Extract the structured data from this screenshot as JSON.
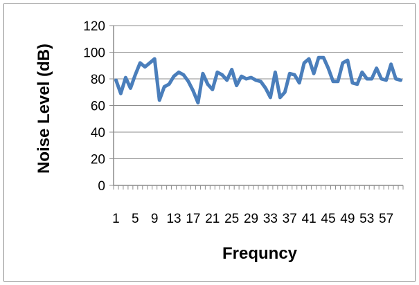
{
  "chart_data": {
    "type": "line",
    "title": "",
    "xlabel": "Frequncy",
    "ylabel": "Noise Level (dB)",
    "ylim": [
      0,
      120
    ],
    "yticks": [
      0,
      20,
      40,
      60,
      80,
      100,
      120
    ],
    "x_tick_labels": [
      "1",
      "5",
      "9",
      "13",
      "17",
      "21",
      "25",
      "29",
      "33",
      "37",
      "41",
      "45",
      "49",
      "53",
      "57"
    ],
    "grid": true,
    "legend": "none",
    "series_color": "#4a7ebb",
    "x": [
      1,
      2,
      3,
      4,
      5,
      6,
      7,
      8,
      9,
      10,
      11,
      12,
      13,
      14,
      15,
      16,
      17,
      18,
      19,
      20,
      21,
      22,
      23,
      24,
      25,
      26,
      27,
      28,
      29,
      30,
      31,
      32,
      33,
      34,
      35,
      36,
      37,
      38,
      39,
      40,
      41,
      42,
      43,
      44,
      45,
      46,
      47,
      48,
      49,
      50,
      51,
      52,
      53,
      54,
      55,
      56,
      57,
      58,
      59,
      60
    ],
    "series": [
      {
        "values": [
          79,
          69,
          81,
          73,
          83,
          92,
          89,
          92,
          95,
          64,
          74,
          76,
          82,
          85,
          83,
          78,
          71,
          62,
          84,
          76,
          72,
          85,
          83,
          79,
          87,
          75,
          82,
          80,
          81,
          79,
          78,
          73,
          66,
          85,
          66,
          70,
          84,
          83,
          77,
          92,
          95,
          84,
          96,
          96,
          88,
          78,
          78,
          92,
          94,
          77,
          76,
          85,
          80,
          80,
          88,
          80,
          79,
          91,
          80,
          79
        ]
      }
    ]
  }
}
